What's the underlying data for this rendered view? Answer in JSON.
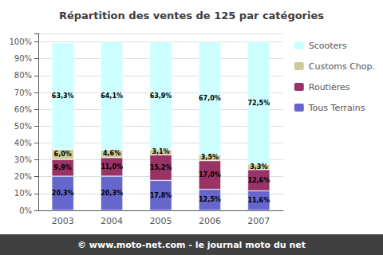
{
  "chart_data": {
    "type": "bar",
    "title": "Répartition des ventes de 125 par catégories",
    "categories": [
      "2003",
      "2004",
      "2005",
      "2006",
      "2007"
    ],
    "series": [
      {
        "name": "Tous Terrains",
        "color": "#6666cc",
        "values": [
          20.3,
          20.3,
          17.8,
          12.5,
          11.6
        ],
        "value_labels": [
          "20,3%",
          "20,3%",
          "17,8%",
          "12,5%",
          "11,6%"
        ]
      },
      {
        "name": "Routières",
        "color": "#993366",
        "values": [
          9.9,
          11.0,
          15.2,
          17.0,
          12.6
        ],
        "value_labels": [
          "9,9%",
          "11,0%",
          "15,2%",
          "17,0%",
          "12,6%"
        ]
      },
      {
        "name": "Customs Chop.",
        "color": "#cccc99",
        "values": [
          6.0,
          4.6,
          3.1,
          3.5,
          3.3
        ],
        "value_labels": [
          "6,0%",
          "4,6%",
          "3,1%",
          "3,5%",
          "3,3%"
        ]
      },
      {
        "name": "Scooters",
        "color": "#ccffff",
        "values": [
          63.3,
          64.1,
          63.9,
          67.0,
          72.5
        ],
        "value_labels": [
          "63,3%",
          "64,1%",
          "63,9%",
          "67,0%",
          "72,5%"
        ]
      }
    ],
    "stacked": true,
    "data_labels": true,
    "ylim": [
      0,
      105
    ],
    "yticks": [
      {
        "value": 0,
        "label": "0%"
      },
      {
        "value": 10,
        "label": "10%"
      },
      {
        "value": 20,
        "label": "20%"
      },
      {
        "value": 30,
        "label": "30%"
      },
      {
        "value": 40,
        "label": "40%"
      },
      {
        "value": 50,
        "label": "50%"
      },
      {
        "value": 60,
        "label": "60%"
      },
      {
        "value": 70,
        "label": "70%"
      },
      {
        "value": 80,
        "label": "80%"
      },
      {
        "value": 90,
        "label": "90%"
      },
      {
        "value": 100,
        "label": "100%"
      }
    ],
    "grid": true,
    "legend": "right",
    "annotations": [
      "© www.moto-net.com - le journal moto du net"
    ]
  }
}
